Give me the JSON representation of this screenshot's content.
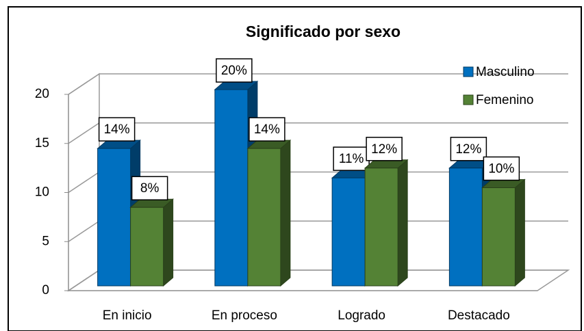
{
  "chart_data": {
    "type": "bar3d",
    "title": "Significado por sexo",
    "categories": [
      "En inicio",
      "En proceso",
      "Logrado",
      "Destacado"
    ],
    "series": [
      {
        "name": "Masculino",
        "color": "#0070c0",
        "values": [
          14,
          20,
          11,
          12
        ],
        "value_labels": [
          "14%",
          "20%",
          "11%",
          "12%"
        ]
      },
      {
        "name": "Femenino",
        "color": "#548235",
        "values": [
          8,
          14,
          12,
          10
        ],
        "value_labels": [
          "8%",
          "14%",
          "12%",
          "10%"
        ]
      }
    ],
    "ylim": [
      0,
      20
    ],
    "yticks": [
      0,
      5,
      10,
      15,
      20
    ],
    "grid": true,
    "legend": "top-right"
  }
}
